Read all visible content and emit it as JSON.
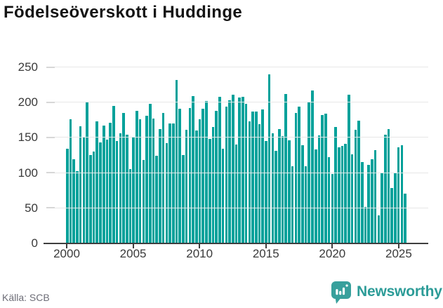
{
  "source": {
    "label": "Källa: SCB"
  },
  "branding": {
    "name": "Newsworthy",
    "icon": "speech-bubble-bar-chart-icon"
  },
  "colors": {
    "bar": "#00a19a",
    "axis_line": "#3e3e3e",
    "gridline": "#e7e7e7",
    "minor_tick": "#d7d7d7",
    "title_text": "#141414",
    "axis_text": "#3a3a3a",
    "source_text": "#6d6d77",
    "brand_teal": "#2d9c98"
  },
  "chart_data": {
    "type": "bar",
    "title": "Födelseöverskott i Huddinge",
    "x_unit": "quarter",
    "start_year": 2000,
    "years": [
      {
        "year": 2000,
        "values": [
          133,
          175,
          119,
          102
        ]
      },
      {
        "year": 2001,
        "values": [
          165,
          150,
          200,
          125
        ]
      },
      {
        "year": 2002,
        "values": [
          129,
          172,
          142,
          166
        ]
      },
      {
        "year": 2003,
        "values": [
          146,
          170,
          194,
          144
        ]
      },
      {
        "year": 2004,
        "values": [
          155,
          184,
          153,
          105
        ]
      },
      {
        "year": 2005,
        "values": [
          150,
          187,
          175,
          118
        ]
      },
      {
        "year": 2006,
        "values": [
          180,
          197,
          176,
          124
        ]
      },
      {
        "year": 2007,
        "values": [
          161,
          184,
          141,
          169
        ]
      },
      {
        "year": 2008,
        "values": [
          169,
          231,
          190,
          125
        ]
      },
      {
        "year": 2009,
        "values": [
          160,
          191,
          208,
          159
        ]
      },
      {
        "year": 2010,
        "values": [
          175,
          190,
          201,
          147
        ]
      },
      {
        "year": 2011,
        "values": [
          164,
          187,
          207,
          133
        ]
      },
      {
        "year": 2012,
        "values": [
          193,
          202,
          210,
          139
        ]
      },
      {
        "year": 2013,
        "values": [
          206,
          207,
          197,
          172
        ]
      },
      {
        "year": 2014,
        "values": [
          186,
          186,
          168,
          189
        ]
      },
      {
        "year": 2015,
        "values": [
          144,
          239,
          155,
          130
        ]
      },
      {
        "year": 2016,
        "values": [
          161,
          151,
          211,
          145
        ]
      },
      {
        "year": 2017,
        "values": [
          109,
          184,
          193,
          138
        ]
      },
      {
        "year": 2018,
        "values": [
          109,
          199,
          216,
          132
        ]
      },
      {
        "year": 2019,
        "values": [
          152,
          181,
          183,
          122
        ]
      },
      {
        "year": 2020,
        "values": [
          98,
          164,
          135,
          137
        ]
      },
      {
        "year": 2021,
        "values": [
          140,
          210,
          126,
          160
        ]
      },
      {
        "year": 2022,
        "values": [
          173,
          115,
          51,
          111
        ]
      },
      {
        "year": 2023,
        "values": [
          119,
          131,
          39,
          99
        ]
      },
      {
        "year": 2024,
        "values": [
          153,
          161,
          78,
          100
        ]
      },
      {
        "year": 2025,
        "values": [
          135,
          138,
          70
        ]
      }
    ],
    "ylim": [
      0,
      250
    ],
    "yticks": [
      0,
      50,
      100,
      150,
      200,
      250
    ],
    "xticks": [
      2000,
      2005,
      2010,
      2015,
      2020,
      2025
    ],
    "grid": "horizontal-only",
    "legend": "none",
    "bar_color": "#00a19a"
  }
}
